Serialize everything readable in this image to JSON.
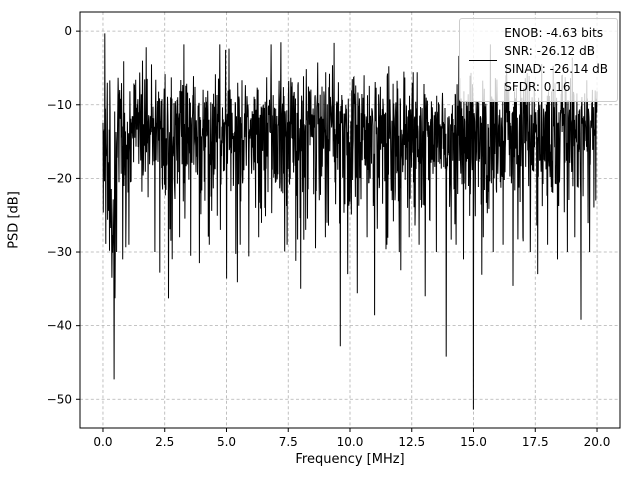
{
  "chart_data": {
    "type": "line",
    "title": "",
    "xlabel": "Frequency [MHz]",
    "ylabel": "PSD [dB]",
    "xlim": [
      -0.93,
      20.93
    ],
    "ylim": [
      2.6,
      -53.9
    ],
    "grid": "dashed",
    "line_color": "#000000",
    "grid_color": "#b0b0b0",
    "legend_position": "upper right",
    "legend": {
      "enob": "ENOB: -4.63 bits",
      "snr": "SNR: -26.12 dB",
      "sinad": "SINAD: -26.14 dB",
      "sfdr": "SFDR: 0.16"
    },
    "xticks": {
      "values": [
        0,
        2.5,
        5,
        7.5,
        10,
        12.5,
        15,
        17.5,
        20
      ],
      "labels": [
        "0.0",
        "2.5",
        "5.0",
        "7.5",
        "10.0",
        "12.5",
        "15.0",
        "17.5",
        "20.0"
      ]
    },
    "yticks": {
      "values": [
        0,
        -10,
        -20,
        -30,
        -40,
        -50
      ],
      "labels": [
        "0",
        "−10",
        "−20",
        "−30",
        "−40",
        "−50"
      ]
    },
    "signal": {
      "description": "Dense wideband noise PSD trace, 0-20 MHz, noise mass between about -25 dB and -3 dB with occasional deep nulls down to -51 dB and peaks reaching 0 dB near DC",
      "x_range": [
        0,
        20
      ],
      "n_points": 1600,
      "seed": 77,
      "base_db": -13.2,
      "sigma_up": 3.6,
      "sigma_down": 6.2,
      "clamp_high": -1.8,
      "clamp_low": -47.5,
      "low_freq_region": {
        "x_below": 0.55,
        "base_db": -17,
        "sigma_down": 9
      },
      "features": [
        [
          0.07,
          -0.3
        ],
        [
          0.18,
          -7
        ],
        [
          0.3,
          -25
        ],
        [
          0.36,
          -33.5
        ],
        [
          0.45,
          -47.3
        ],
        [
          0.55,
          -30
        ],
        [
          0.8,
          -31
        ],
        [
          1.05,
          -29
        ],
        [
          1.3,
          -8
        ],
        [
          1.6,
          -4
        ],
        [
          1.75,
          -2.2
        ],
        [
          2.1,
          -30
        ],
        [
          2.3,
          -32.8
        ],
        [
          2.65,
          -36.3
        ],
        [
          3.1,
          -28
        ],
        [
          3.55,
          -30.5
        ],
        [
          3.9,
          -31.5
        ],
        [
          4.3,
          -29
        ],
        [
          4.75,
          -27
        ],
        [
          5.0,
          -33.6
        ],
        [
          5.55,
          -29
        ],
        [
          5.9,
          -30.6
        ],
        [
          6.3,
          -28
        ],
        [
          6.55,
          -24
        ],
        [
          6.8,
          -1.8
        ],
        [
          7.2,
          -1.5
        ],
        [
          7.45,
          -29
        ],
        [
          7.8,
          -31.2
        ],
        [
          8.2,
          -27
        ],
        [
          8.6,
          -29.5
        ],
        [
          9.0,
          -28
        ],
        [
          9.35,
          -1.6
        ],
        [
          9.6,
          -42.8
        ],
        [
          9.9,
          -33
        ],
        [
          10.3,
          -35.6
        ],
        [
          10.7,
          -28
        ],
        [
          11.0,
          -38.6
        ],
        [
          11.5,
          -29
        ],
        [
          12.0,
          -30
        ],
        [
          12.4,
          -28
        ],
        [
          12.8,
          -29
        ],
        [
          13.05,
          -36
        ],
        [
          13.5,
          -30
        ],
        [
          13.9,
          -44.2
        ],
        [
          14.3,
          -29
        ],
        [
          14.6,
          -31
        ],
        [
          15.0,
          -51.4
        ],
        [
          15.4,
          -28
        ],
        [
          15.8,
          -30
        ],
        [
          16.2,
          -29
        ],
        [
          16.6,
          -34.6
        ],
        [
          17.0,
          -28
        ],
        [
          17.3,
          -30
        ],
        [
          17.6,
          -33
        ],
        [
          18.0,
          -29
        ],
        [
          18.4,
          -31
        ],
        [
          18.8,
          -30
        ],
        [
          19.1,
          -28
        ],
        [
          19.35,
          -39.2
        ],
        [
          19.7,
          -30
        ],
        [
          19.95,
          -23
        ]
      ]
    }
  }
}
